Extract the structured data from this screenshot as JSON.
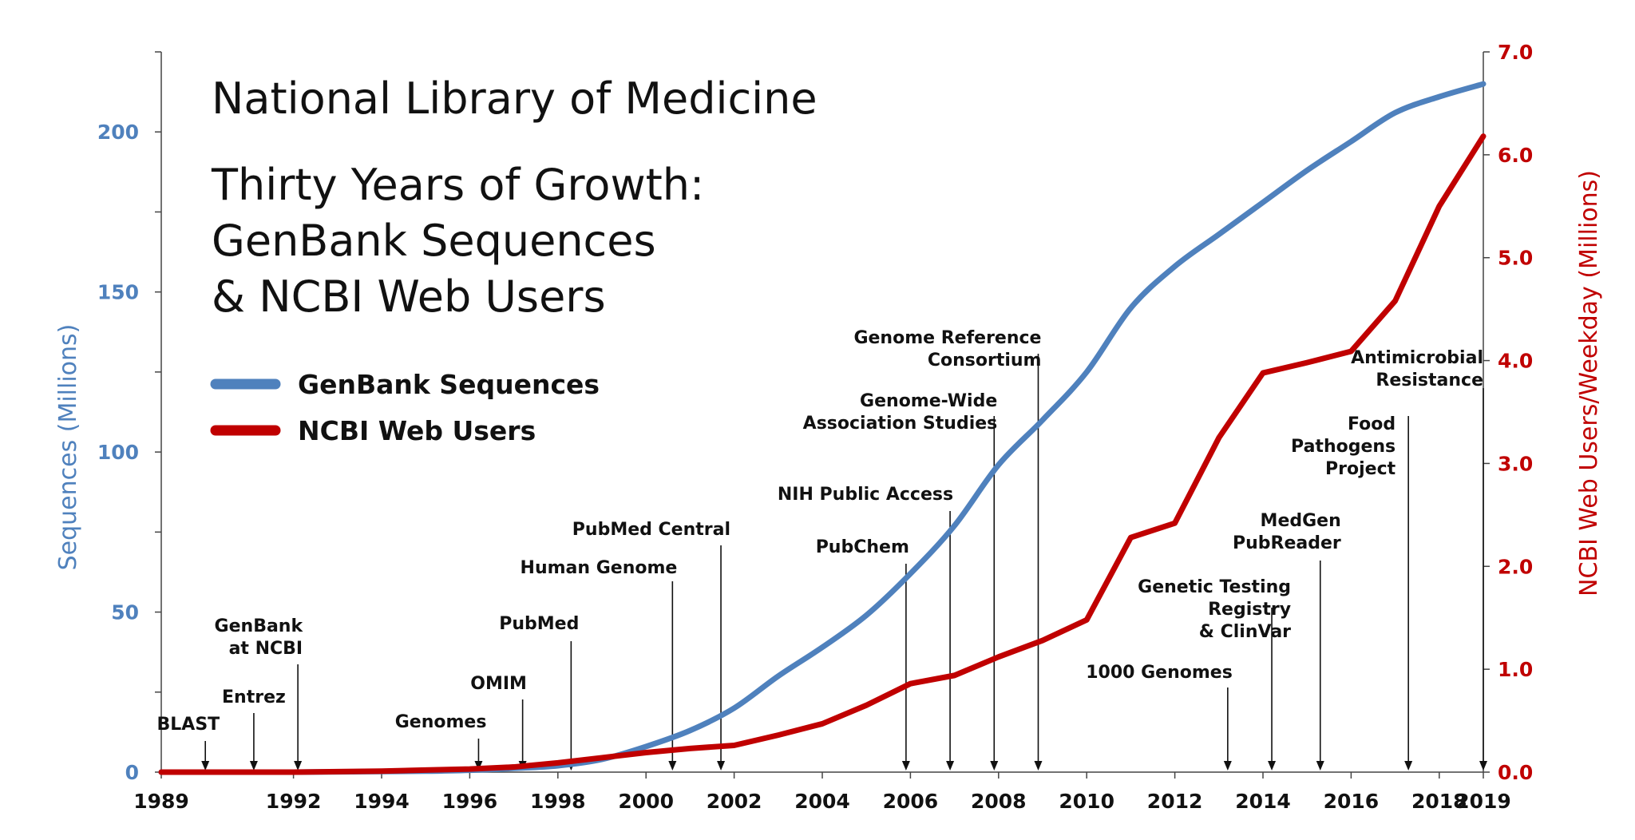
{
  "title": "National Library of Medicine",
  "subtitle_lines": [
    "Thirty Years of Growth:",
    "GenBank Sequences",
    "& NCBI Web Users"
  ],
  "colors": {
    "genbank": "#4f81bd",
    "users": "#c00000",
    "axis": "#444444",
    "text": "#111111"
  },
  "chart_data": {
    "type": "line",
    "ylabel_left": "Sequences (Millions)",
    "ylabel_right": "NCBI Web Users/Weekday (Millions)",
    "xlim": [
      1989,
      2019
    ],
    "ylim_left": [
      0,
      225
    ],
    "ylim_right": [
      0,
      7.0
    ],
    "x_ticks": [
      "1989",
      "1992",
      "1994",
      "1996",
      "1998",
      "2000",
      "2002",
      "2004",
      "2006",
      "2008",
      "2010",
      "2012",
      "2014",
      "2016",
      "2018",
      "2019"
    ],
    "x_tick_values": [
      1989,
      1992,
      1994,
      1996,
      1998,
      2000,
      2002,
      2004,
      2006,
      2008,
      2010,
      2012,
      2014,
      2016,
      2018,
      2019
    ],
    "y_left_ticks": [
      "0",
      "50",
      "100",
      "150",
      "200"
    ],
    "y_left_tick_values": [
      0,
      50,
      100,
      150,
      200
    ],
    "y_right_ticks": [
      "0.0",
      "1.0",
      "2.0",
      "3.0",
      "4.0",
      "5.0",
      "6.0",
      "7.0"
    ],
    "y_right_tick_values": [
      0,
      1,
      2,
      3,
      4,
      5,
      6,
      7
    ],
    "grid": false,
    "legend_position": "left",
    "series": [
      {
        "name": "GenBank Sequences",
        "axis": "left",
        "color": "#4f81bd",
        "x": [
          1989,
          1990,
          1991,
          1992,
          1993,
          1994,
          1995,
          1996,
          1997,
          1998,
          1999,
          2000,
          2001,
          2002,
          2003,
          2004,
          2005,
          2006,
          2007,
          2008,
          2009,
          2010,
          2011,
          2012,
          2013,
          2014,
          2015,
          2016,
          2017,
          2018,
          2019
        ],
        "y": [
          0,
          0,
          0,
          0,
          0.1,
          0.2,
          0.3,
          0.6,
          1.2,
          2.0,
          4.0,
          8.0,
          13.0,
          20.0,
          30.0,
          39.0,
          49.0,
          62.0,
          77.0,
          96.0,
          110.0,
          125.0,
          145.0,
          158.0,
          168.0,
          178.0,
          188.0,
          197.0,
          206.0,
          211.0,
          215.0
        ]
      },
      {
        "name": "NCBI Web Users",
        "axis": "right",
        "color": "#c00000",
        "x": [
          1989,
          1990,
          1991,
          1992,
          1993,
          1994,
          1995,
          1996,
          1997,
          1998,
          1999,
          2000,
          2001,
          2002,
          2003,
          2004,
          2005,
          2006,
          2007,
          2008,
          2009,
          2010,
          2011,
          2012,
          2013,
          2014,
          2015,
          2016,
          2017,
          2018,
          2019
        ],
        "y": [
          0,
          0,
          0,
          0,
          0.005,
          0.01,
          0.02,
          0.03,
          0.05,
          0.09,
          0.14,
          0.19,
          0.23,
          0.26,
          0.36,
          0.47,
          0.65,
          0.86,
          0.94,
          1.12,
          1.28,
          1.48,
          2.28,
          2.42,
          3.25,
          3.88,
          3.98,
          4.09,
          4.58,
          5.5,
          6.18
        ]
      }
    ],
    "annotations": [
      {
        "lines": [
          "BLAST"
        ],
        "year": 1990.0,
        "anchor": "end",
        "dx": 18
      },
      {
        "lines": [
          "Entrez"
        ],
        "year": 1991.1,
        "anchor": "middle",
        "dx": 0
      },
      {
        "lines": [
          "GenBank",
          "at NCBI"
        ],
        "year": 1992.1,
        "anchor": "end",
        "dx": 6
      },
      {
        "lines": [
          "Genomes"
        ],
        "year": 1996.2,
        "anchor": "end",
        "dx": 10
      },
      {
        "lines": [
          "OMIM"
        ],
        "year": 1997.2,
        "anchor": "middle",
        "dx": -30
      },
      {
        "lines": [
          "PubMed"
        ],
        "year": 1998.3,
        "anchor": "end",
        "dx": 10
      },
      {
        "lines": [
          "Human Genome"
        ],
        "year": 2000.6,
        "anchor": "end",
        "dx": 6
      },
      {
        "lines": [
          "PubMed Central"
        ],
        "year": 2001.7,
        "anchor": "end",
        "dx": 12
      },
      {
        "lines": [
          "PubChem"
        ],
        "year": 2005.9,
        "anchor": "end",
        "dx": 4
      },
      {
        "lines": [
          "NIH Public Access"
        ],
        "year": 2006.9,
        "anchor": "end",
        "dx": 4
      },
      {
        "lines": [
          "Genome-Wide",
          "Association Studies"
        ],
        "year": 2007.9,
        "anchor": "end",
        "dx": 4
      },
      {
        "lines": [
          "Genome Reference",
          "Consortium"
        ],
        "year": 2008.9,
        "anchor": "end",
        "dx": 4
      },
      {
        "lines": [
          "1000 Genomes"
        ],
        "year": 2013.2,
        "anchor": "end",
        "dx": 6
      },
      {
        "lines": [
          "Genetic Testing",
          "Registry",
          "& ClinVar"
        ],
        "year": 2014.2,
        "anchor": "end",
        "dx": 24
      },
      {
        "lines": [
          "MedGen",
          "PubReader"
        ],
        "year": 2015.3,
        "anchor": "end",
        "dx": 26
      },
      {
        "lines": [
          "Food",
          "Pathogens",
          "Project"
        ],
        "year": 2017.3,
        "anchor": "end",
        "dx": -16
      },
      {
        "lines": [
          "Antimicrobial",
          "Resistance"
        ],
        "year": 2019.0,
        "anchor": "end",
        "dx": 0
      }
    ]
  }
}
